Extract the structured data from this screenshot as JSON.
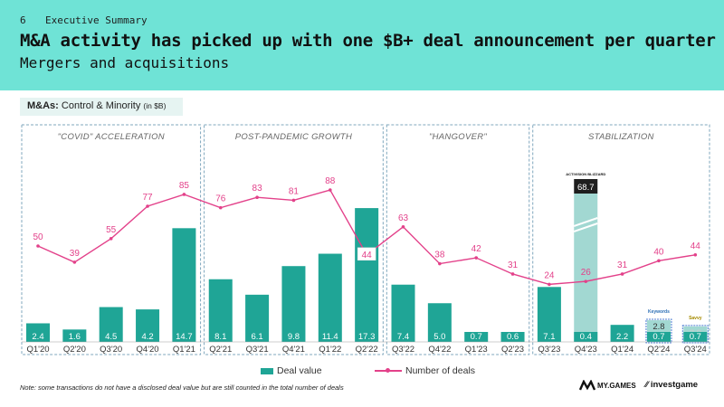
{
  "header": {
    "slide_number": "6",
    "section": "Executive Summary",
    "title": "M&A activity has picked up with one $B+ deal announcement per quarter",
    "subtitle": "Mergers and acquisitions"
  },
  "chip": {
    "bold": "M&As:",
    "text": " Control & Minority",
    "unit": "(in $B)"
  },
  "colors": {
    "header_bg": "#6fe3d6",
    "bar": "#1fa596",
    "bar_light": "#a2d8d2",
    "line": "#e3418a",
    "period_border": "#7fa7bd"
  },
  "chart_data": {
    "type": "bar+line",
    "categories": [
      "Q1'20",
      "Q2'20",
      "Q3'20",
      "Q4'20",
      "Q1'21",
      "Q2'21",
      "Q3'21",
      "Q4'21",
      "Q1'22",
      "Q2'22",
      "Q3'22",
      "Q4'22",
      "Q1'23",
      "Q2'23",
      "Q3'23",
      "Q4'23",
      "Q1'24",
      "Q2'24",
      "Q3'24"
    ],
    "periods": [
      {
        "label": "\"COVID\" ACCELERATION",
        "start": 0,
        "end": 4
      },
      {
        "label": "POST-PANDEMIC GROWTH",
        "start": 5,
        "end": 9
      },
      {
        "label": "\"HANGOVER\"",
        "start": 10,
        "end": 13
      },
      {
        "label": "STABILIZATION",
        "start": 14,
        "end": 18
      }
    ],
    "series": [
      {
        "name": "Deal value",
        "type": "bar",
        "values": [
          2.4,
          1.6,
          4.5,
          4.2,
          14.7,
          8.1,
          6.1,
          9.8,
          11.4,
          17.3,
          7.4,
          5.0,
          0.7,
          0.6,
          7.1,
          0.4,
          2.2,
          0.7,
          0.7
        ],
        "labels": [
          "2.4",
          "1.6",
          "4.5",
          "4.2",
          "14.7",
          "8.1",
          "6.1",
          "9.8",
          "11.4",
          "17.3",
          "7.4",
          "5.0",
          "0.7",
          "0.6",
          "7.1",
          "0.4",
          "2.2",
          "0.7",
          "0.7"
        ]
      },
      {
        "name": "Number of deals",
        "type": "line",
        "values": [
          50,
          39,
          55,
          77,
          85,
          76,
          83,
          81,
          88,
          44,
          63,
          38,
          42,
          31,
          24,
          26,
          31,
          40,
          44
        ]
      }
    ],
    "big_deals": [
      {
        "index": 15,
        "value": 68.7,
        "label": "68.7",
        "logo": "ACTIVISION BLIZZARD"
      },
      {
        "index": 17,
        "value": 2.8,
        "label": "2.8",
        "logo": "Keywords"
      },
      {
        "index": 18,
        "value": 2.0,
        "label": "2.0",
        "logo": "Savvy"
      }
    ]
  },
  "legend": {
    "bar": "Deal value",
    "line": "Number of deals"
  },
  "footer": {
    "note": "Note: some transactions do not have a disclosed deal value but are still counted in the total number of deals",
    "logo_mygames": "MY.GAMES",
    "logo_investgame": "investgame"
  }
}
